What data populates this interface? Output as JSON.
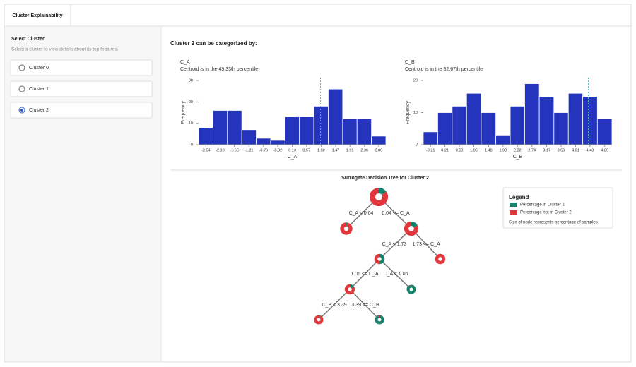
{
  "tab": {
    "label": "Cluster Explainability"
  },
  "sidebar": {
    "title": "Select Cluster",
    "subtitle": "Select a cluster to view details about its top features.",
    "options": [
      {
        "label": "Cluster 0"
      },
      {
        "label": "Cluster 1"
      },
      {
        "label": "Cluster 2"
      }
    ],
    "selected": 2
  },
  "heading": "Cluster 2 can be categorized by:",
  "chart_data": [
    {
      "type": "histogram",
      "title": "C_A",
      "subtitle": "Centroid is in the 49.33th percentile",
      "x_label": "C_A",
      "y_label": "Frequency",
      "color": "#2434bd",
      "bins": [
        -2.765,
        -2.32,
        -1.875,
        -1.43,
        -0.985,
        -0.54,
        -0.095,
        0.35,
        0.795,
        1.24,
        1.685,
        2.13,
        2.575,
        3.02
      ],
      "values": [
        8,
        16,
        16,
        7,
        3,
        2,
        13,
        13,
        18,
        26,
        12,
        12,
        4
      ],
      "xlim": [
        -2.765,
        3.02
      ],
      "xticks": [
        -2.54,
        {
          "value": -2.1,
          "label": "-2.10"
        },
        -1.66,
        -1.21,
        -0.76,
        -0.32,
        0.13,
        0.57,
        1.02,
        1.47,
        1.91,
        2.36,
        {
          "value": 2.8,
          "label": "2.80"
        }
      ],
      "ylim": [
        0,
        30
      ],
      "yticks": [
        0,
        10,
        20,
        30
      ],
      "centroid": 1.0
    },
    {
      "type": "histogram",
      "title": "C_B",
      "subtitle": "Centroid is in the 82.67th percentile",
      "x_label": "C_B",
      "y_label": "Frequency",
      "color": "#2434bd",
      "bins": [
        -0.42,
        0.0,
        0.42,
        0.84,
        1.265,
        1.69,
        2.11,
        2.53,
        2.955,
        3.38,
        3.8,
        4.22,
        4.645,
        5.07
      ],
      "values": [
        4,
        10,
        12,
        16,
        10,
        3,
        12,
        19,
        15,
        10,
        16,
        15,
        8
      ],
      "xlim": [
        -0.42,
        5.07
      ],
      "xticks": [
        -0.21,
        0.21,
        0.63,
        1.05,
        1.48,
        {
          "value": 1.9,
          "label": "1.90"
        },
        2.32,
        2.74,
        3.17,
        3.59,
        4.01,
        4.43,
        4.86
      ],
      "ylim": [
        0,
        20
      ],
      "yticks": [
        0,
        10,
        20
      ],
      "centroid": 4.38
    }
  ],
  "tree": {
    "title": "Surrogate Decision Tree for Cluster 2",
    "nodes": [
      {
        "in_cluster": 15
      },
      {
        "in_cluster": 2
      },
      {
        "in_cluster": 17
      },
      {
        "in_cluster": 50
      },
      {
        "in_cluster": 3
      },
      {
        "in_cluster": 15
      },
      {
        "in_cluster": 95
      },
      {
        "in_cluster": 5
      },
      {
        "in_cluster": 95
      }
    ],
    "edges": [
      {
        "label": "C_A < 0.04"
      },
      {
        "label": "0.04 <= C_A"
      },
      {
        "label": "C_A < 1.73"
      },
      {
        "label": "1.73 <= C_A"
      },
      {
        "label": "1.06 <= C_A"
      },
      {
        "label": "C_A < 1.06"
      },
      {
        "label": "C_B < 3.39"
      },
      {
        "label": "3.39 <= C_B"
      }
    ],
    "legend": {
      "title": "Legend",
      "items": [
        {
          "name": "Percentage in Cluster 2",
          "color": "#17826c"
        },
        {
          "name": "Percentage not in Cluster 2",
          "color": "#e0373c"
        }
      ],
      "note": "Size of node represents percentage of samples"
    }
  }
}
